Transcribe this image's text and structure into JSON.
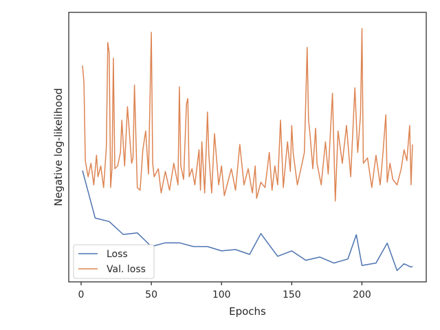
{
  "chart_data": {
    "type": "line",
    "title": "",
    "xlabel": "Epochs",
    "ylabel": "Negative log-likelihood",
    "xlim": [
      -8.8,
      245.8
    ],
    "ylim": [
      0.0,
      1.0
    ],
    "y_ticks_shown": false,
    "x_ticks": [
      0,
      50,
      100,
      150,
      200
    ],
    "x_tick_labels": [
      "0",
      "50",
      "100",
      "150",
      "200"
    ],
    "grid": false,
    "legend": {
      "position": "lower-left",
      "entries": [
        "Loss",
        "Val. loss"
      ]
    },
    "colors": {
      "Loss": "#4c72b0",
      "Val. loss": "#dd8452"
    },
    "series": [
      {
        "name": "Loss",
        "x": [
          1,
          10,
          20,
          30,
          40,
          50,
          60,
          70,
          80,
          90,
          100,
          110,
          120,
          128,
          140,
          150,
          160,
          170,
          180,
          190,
          196,
          200,
          210,
          218,
          225,
          230,
          235,
          236
        ],
        "values": [
          0.413,
          0.237,
          0.224,
          0.176,
          0.182,
          0.131,
          0.145,
          0.145,
          0.131,
          0.131,
          0.115,
          0.12,
          0.102,
          0.179,
          0.095,
          0.115,
          0.08,
          0.092,
          0.07,
          0.085,
          0.175,
          0.061,
          0.07,
          0.144,
          0.042,
          0.067,
          0.055,
          0.058
        ]
      },
      {
        "name": "Val. loss",
        "x": [
          1,
          2,
          3,
          4,
          5,
          7,
          9,
          11,
          12,
          14,
          16,
          18,
          19,
          20,
          21,
          22,
          23,
          24,
          26,
          28,
          29,
          31,
          33,
          36,
          37,
          38,
          40,
          42,
          44,
          46,
          48,
          50,
          51,
          52,
          55,
          57,
          60,
          63,
          66,
          69,
          70,
          71,
          73,
          75,
          76,
          77,
          79,
          81,
          84,
          85,
          86,
          88,
          90,
          91,
          93,
          95,
          98,
          100,
          102,
          105,
          107,
          110,
          113,
          116,
          119,
          122,
          124,
          125,
          128,
          131,
          134,
          136,
          138,
          140,
          142,
          144,
          147,
          149,
          150,
          151,
          154,
          157,
          159,
          161,
          162,
          163,
          165,
          167,
          168,
          171,
          174,
          176,
          179,
          181,
          183,
          186,
          189,
          192,
          195,
          197,
          199,
          200,
          201,
          204,
          207,
          210,
          213,
          215,
          217,
          218,
          220,
          222,
          225,
          228,
          230,
          232,
          234,
          235,
          236
        ],
        "values": [
          0.803,
          0.74,
          0.45,
          0.42,
          0.39,
          0.44,
          0.36,
          0.47,
          0.39,
          0.43,
          0.35,
          0.5,
          0.888,
          0.85,
          0.35,
          0.42,
          0.83,
          0.42,
          0.43,
          0.48,
          0.6,
          0.43,
          0.65,
          0.44,
          0.46,
          0.73,
          0.35,
          0.34,
          0.49,
          0.56,
          0.4,
          0.926,
          0.44,
          0.39,
          0.42,
          0.33,
          0.41,
          0.34,
          0.44,
          0.36,
          0.724,
          0.43,
          0.38,
          0.66,
          0.68,
          0.39,
          0.42,
          0.36,
          0.49,
          0.34,
          0.52,
          0.33,
          0.63,
          0.47,
          0.33,
          0.55,
          0.36,
          0.43,
          0.32,
          0.38,
          0.42,
          0.34,
          0.51,
          0.36,
          0.42,
          0.33,
          0.43,
          0.31,
          0.37,
          0.35,
          0.48,
          0.34,
          0.43,
          0.36,
          0.6,
          0.35,
          0.52,
          0.41,
          0.58,
          0.48,
          0.36,
          0.43,
          0.48,
          0.87,
          0.6,
          0.55,
          0.42,
          0.57,
          0.44,
          0.36,
          0.52,
          0.4,
          0.7,
          0.3,
          0.56,
          0.44,
          0.58,
          0.39,
          0.72,
          0.48,
          0.62,
          0.94,
          0.44,
          0.46,
          0.35,
          0.47,
          0.36,
          0.48,
          0.62,
          0.37,
          0.44,
          0.38,
          0.36,
          0.42,
          0.49,
          0.45,
          0.58,
          0.36,
          0.51
        ]
      }
    ]
  }
}
